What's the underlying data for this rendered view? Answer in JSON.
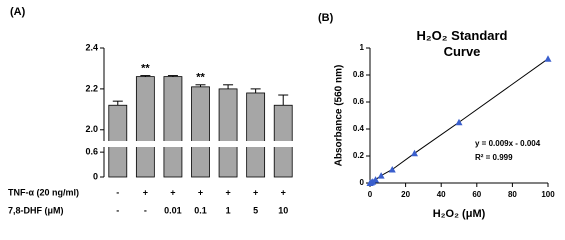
{
  "chart_data": [
    {
      "type": "bar",
      "panel": "(A)",
      "categories": [
        null,
        null,
        null,
        null,
        null,
        null,
        null
      ],
      "values": [
        2.12,
        2.26,
        2.26,
        2.21,
        2.2,
        2.18,
        2.12
      ],
      "errors": [
        0.02,
        0.005,
        0.005,
        0.01,
        0.02,
        0.02,
        0.05
      ],
      "annotations": [
        null,
        "**",
        null,
        "**",
        null,
        null,
        null
      ],
      "color": "#a6a6a6",
      "ylim": [
        1.95,
        2.4
      ],
      "yticks": [
        {
          "value": 2,
          "label": "2.0"
        },
        2.2,
        2.4
      ],
      "ylim_lower": [
        0,
        0.7
      ],
      "yticks_lower": [
        0,
        0.6
      ],
      "treatments": [
        {
          "label": "TNF-α (20 ng/ml)",
          "values": [
            "-",
            "+",
            "+",
            "+",
            "+",
            "+",
            "+"
          ]
        },
        {
          "label": "7,8-DHF (μM)",
          "values": [
            "-",
            "-",
            "0.01",
            "0.1",
            "1",
            "5",
            "10"
          ]
        }
      ]
    },
    {
      "type": "scatter",
      "panel": "(B)",
      "title": "H₂O₂ Standard Curve",
      "xlabel": "H₂O₂ (μM)",
      "ylabel": "Absorbance (560 nm)",
      "x": [
        0,
        0.78,
        1.56,
        3.125,
        6.25,
        12.5,
        25,
        50,
        100
      ],
      "values": [
        0,
        0.005,
        0.01,
        0.025,
        0.055,
        0.1,
        0.22,
        0.45,
        0.92
      ],
      "color": "#3a5fcd",
      "line": true,
      "xlim": [
        0,
        100
      ],
      "xticks": [
        0,
        20,
        40,
        60,
        80,
        100
      ],
      "ylim": [
        0,
        1
      ],
      "yticks": [
        0,
        0.2,
        0.4,
        0.6,
        0.8,
        1
      ],
      "annotations": [
        "y = 0.009x - 0.004",
        "R² = 0.999"
      ]
    }
  ]
}
